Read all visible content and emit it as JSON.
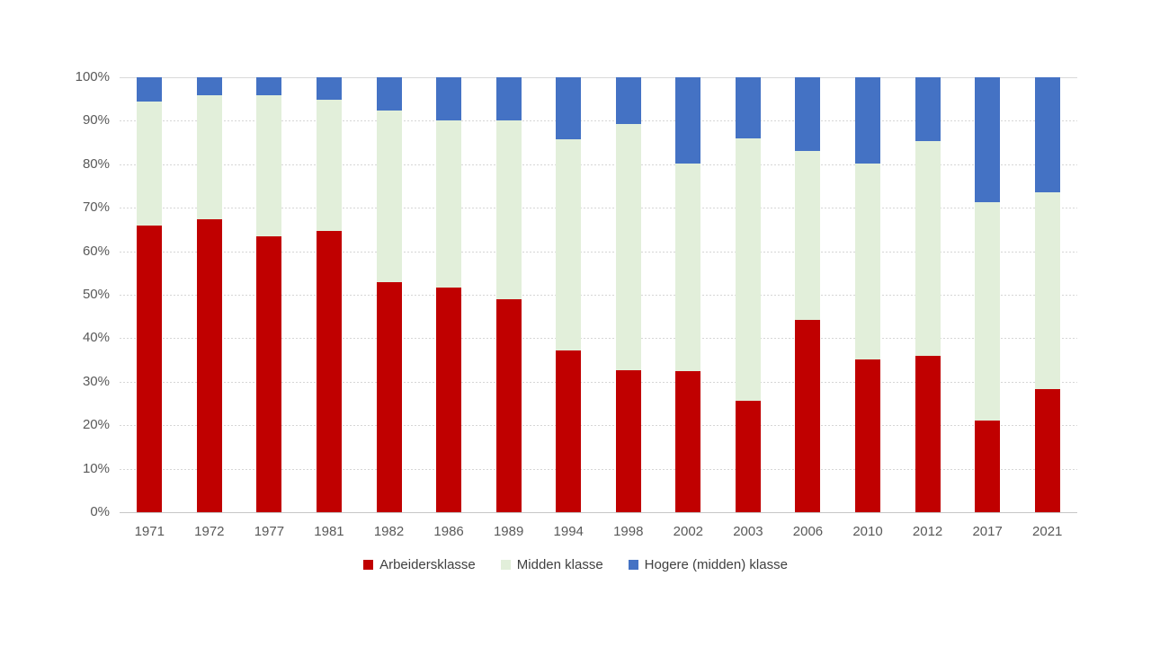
{
  "chart_data": {
    "type": "bar",
    "subtype": "stacked-percent-column",
    "title": "",
    "xlabel": "",
    "ylabel": "",
    "ylim": [
      0,
      100
    ],
    "grid": true,
    "legend_position": "bottom",
    "categories": [
      "1971",
      "1972",
      "1977",
      "1981",
      "1982",
      "1986",
      "1989",
      "1994",
      "1998",
      "2002",
      "2003",
      "2006",
      "2010",
      "2012",
      "2017",
      "2021"
    ],
    "yticks": [
      "0%",
      "10%",
      "20%",
      "30%",
      "40%",
      "50%",
      "60%",
      "70%",
      "80%",
      "90%",
      "100%"
    ],
    "series": [
      {
        "name": "Arbeidersklasse",
        "color": "#C00000",
        "values": [
          66.0,
          67.3,
          63.4,
          64.6,
          53.0,
          51.6,
          49.0,
          37.3,
          32.6,
          32.4,
          25.7,
          44.2,
          35.1,
          35.9,
          21.0,
          28.3
        ]
      },
      {
        "name": "Midden klasse",
        "color": "#E2EFDA",
        "values": [
          28.4,
          28.5,
          32.5,
          30.3,
          39.4,
          38.6,
          41.0,
          48.4,
          56.7,
          47.8,
          60.3,
          38.9,
          45.1,
          49.4,
          50.2,
          45.3
        ]
      },
      {
        "name": "Hogere (midden) klasse",
        "color": "#4472C4",
        "values": [
          5.6,
          4.2,
          4.1,
          5.1,
          7.6,
          9.8,
          10.0,
          14.3,
          10.7,
          19.8,
          14.0,
          16.9,
          19.8,
          14.7,
          28.8,
          26.4
        ]
      }
    ]
  },
  "style_colors": {
    "gridline": "#D9D9D9",
    "axis_line": "#C6C6C6",
    "tick_text": "#595959",
    "legend_text": "#404040",
    "background": "#FFFFFF"
  }
}
